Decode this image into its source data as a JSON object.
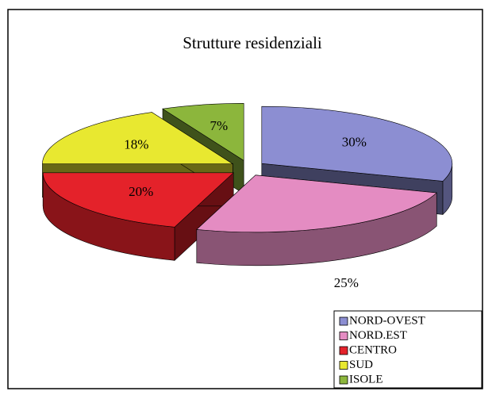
{
  "chart_data": {
    "type": "pie",
    "title": "Strutture residenziali",
    "categories": [
      "NORD-OVEST",
      "NORD.EST",
      "CENTRO",
      "SUD",
      "ISOLE"
    ],
    "values": [
      30,
      25,
      20,
      18,
      7
    ],
    "value_labels": [
      "30%",
      "25%",
      "20%",
      "18%",
      "7%"
    ],
    "colors": [
      "#8c8ed2",
      "#e48cc2",
      "#e4222a",
      "#e8e830",
      "#8cb63c"
    ],
    "legend": "bottom-right"
  }
}
